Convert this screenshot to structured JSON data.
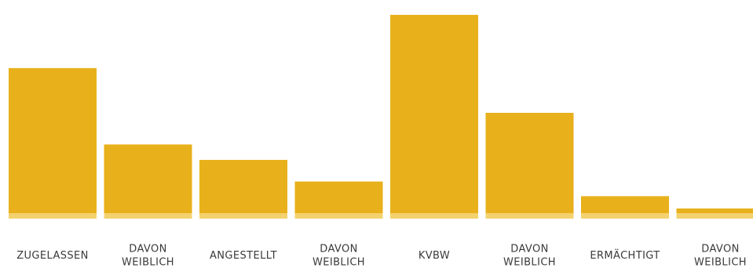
{
  "chart_data": {
    "type": "bar",
    "categories": [
      [
        "ZUGELASSEN"
      ],
      [
        "DAVON",
        "WEIBLICH"
      ],
      [
        "ANGESTELLT"
      ],
      [
        "DAVON",
        "WEIBLICH"
      ],
      [
        "KVBW"
      ],
      [
        "DAVON",
        "WEIBLICH"
      ],
      [
        "ERMÄCHTIGT"
      ],
      [
        "DAVON",
        "WEIBLICH"
      ]
    ],
    "values": [
      188,
      89,
      69,
      41,
      257,
      130,
      22,
      6
    ],
    "ylim": [
      0,
      260
    ],
    "grid": false,
    "legend": "none",
    "colors": {
      "bar": "#E8B01A",
      "baseline": "#F3D26E",
      "label": "#3a3a3a"
    }
  }
}
